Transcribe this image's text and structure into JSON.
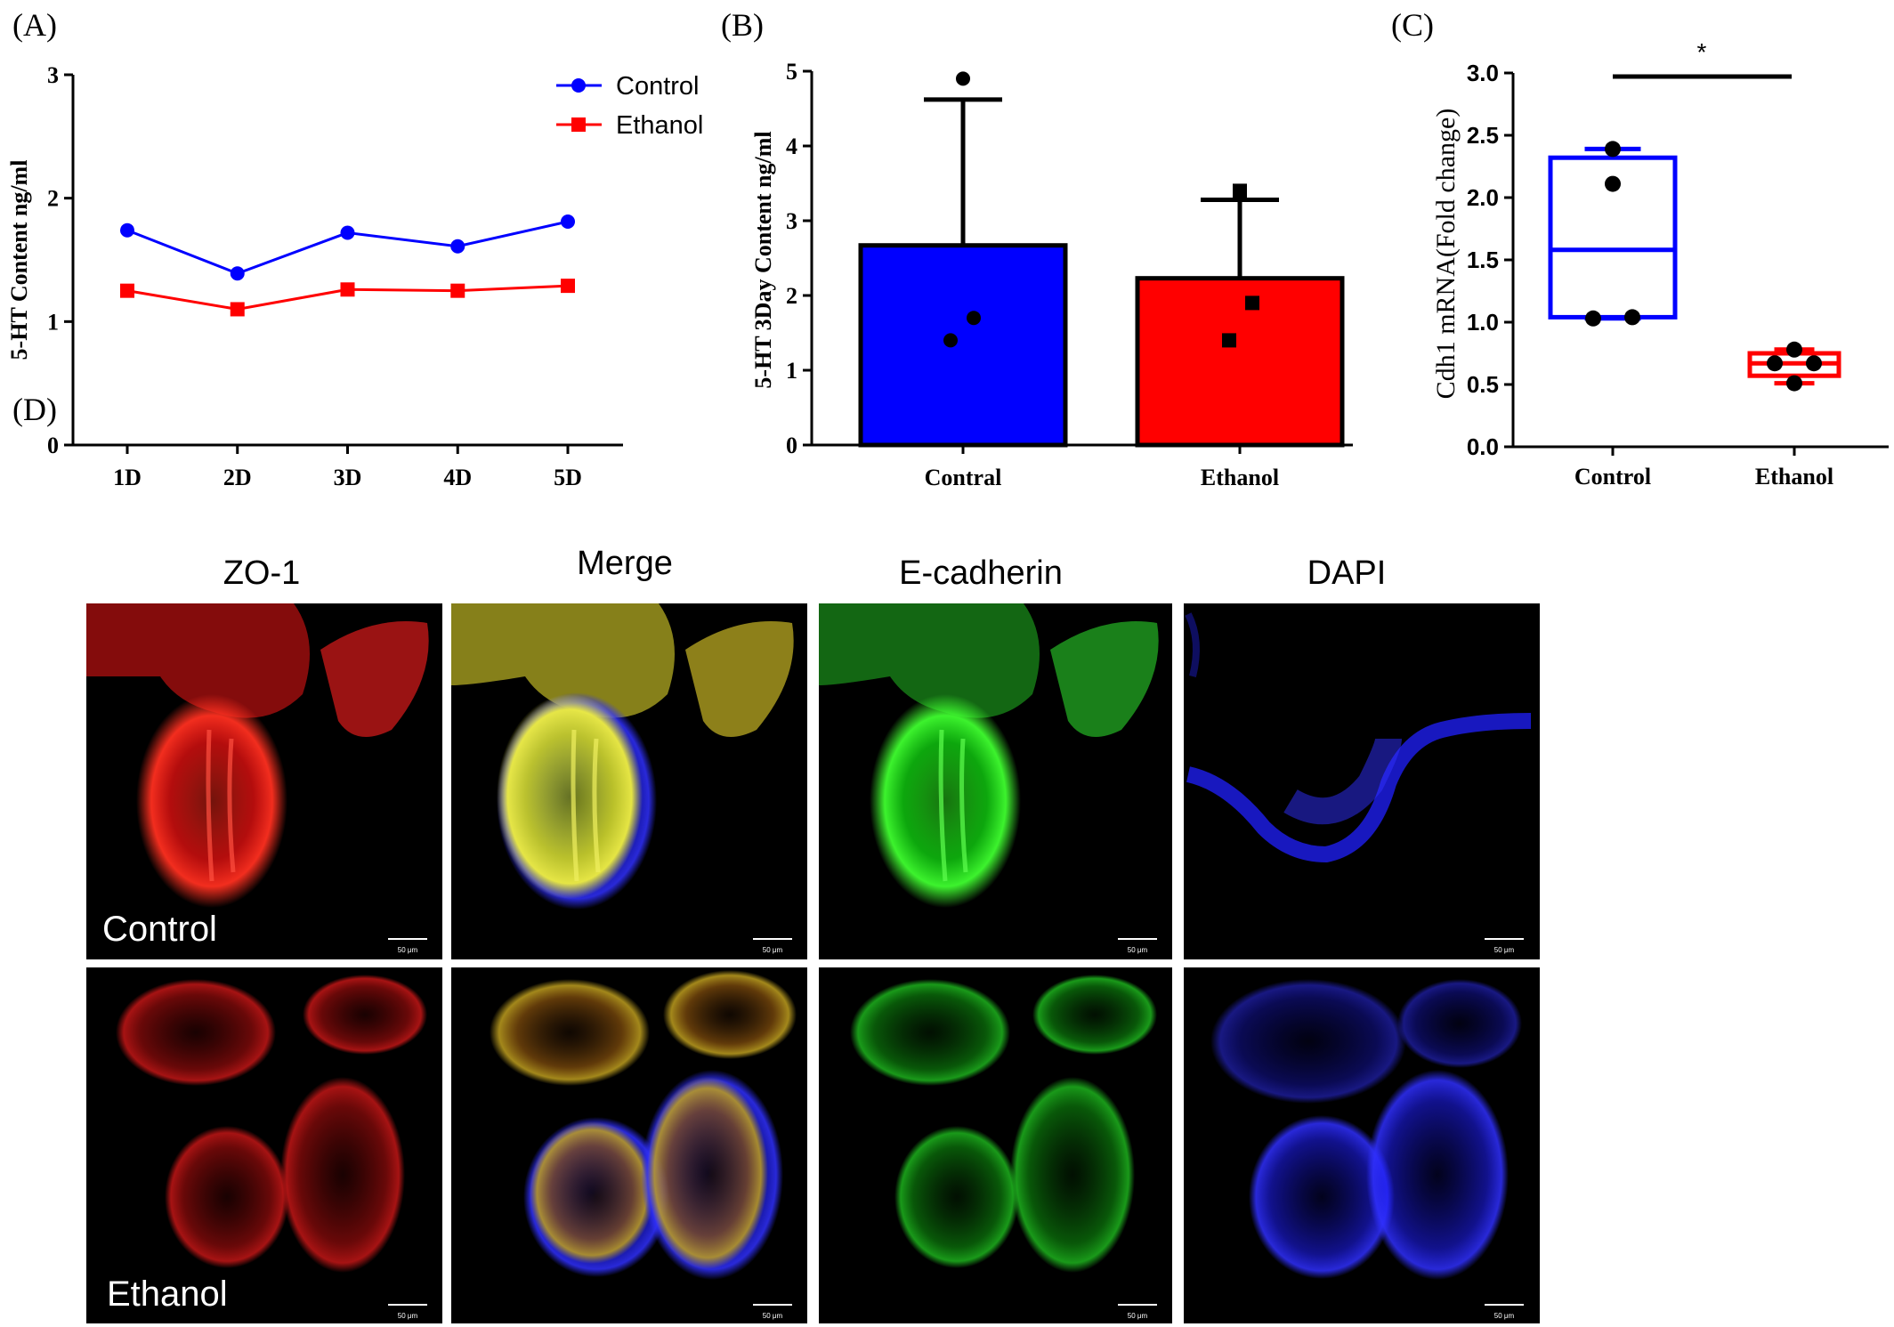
{
  "colors": {
    "control": "#0000ff",
    "ethanol": "#ff0000",
    "axis": "#000000"
  },
  "panel_labels": {
    "a": "(A)",
    "b": "(B)",
    "c": "(C)",
    "d": "(D)"
  },
  "chart_data": [
    {
      "panel": "A",
      "type": "line",
      "ylabel": "5-HT Content ng/ml",
      "xlabel": "",
      "categories": [
        "1D",
        "2D",
        "3D",
        "4D",
        "5D"
      ],
      "ylim": [
        0,
        3
      ],
      "yticks": [
        0,
        1,
        2,
        3
      ],
      "legend_position": "top-right",
      "series": [
        {
          "name": "Control",
          "color": "#0000ff",
          "marker": "circle",
          "values": [
            1.74,
            1.39,
            1.72,
            1.61,
            1.81
          ]
        },
        {
          "name": "Ethanol",
          "color": "#ff0000",
          "marker": "square",
          "values": [
            1.25,
            1.1,
            1.26,
            1.25,
            1.29
          ]
        }
      ]
    },
    {
      "panel": "B",
      "type": "bar",
      "ylabel": "5-HT 3Day Content ng/ml",
      "xlabel": "",
      "categories": [
        "Contral",
        "Ethanol"
      ],
      "ylim": [
        0,
        5
      ],
      "yticks": [
        0,
        1,
        2,
        3,
        4,
        5
      ],
      "series": [
        {
          "colors": [
            "#0000ff",
            "#ff0000"
          ],
          "values": [
            2.67,
            2.23
          ],
          "error_upper": [
            4.62,
            3.28
          ],
          "points": [
            [
              4.9,
              1.7,
              1.4
            ],
            [
              3.4,
              1.9,
              1.4
            ]
          ],
          "point_markers": [
            "circle",
            "square"
          ]
        }
      ]
    },
    {
      "panel": "C",
      "type": "box",
      "ylabel": "Cdh1 mRNA(Fold change)",
      "xlabel": "",
      "categories": [
        "Control",
        "Ethanol"
      ],
      "ylim": [
        0,
        3.0
      ],
      "yticks": [
        "0.0",
        "0.5",
        "1.0",
        "1.5",
        "2.0",
        "2.5",
        "3.0"
      ],
      "significance": "*",
      "series": [
        {
          "name": "Control",
          "color": "#0000ff",
          "min": 1.03,
          "q1": 1.04,
          "median": 1.58,
          "q3": 2.32,
          "max": 2.39,
          "points": [
            2.39,
            2.11,
            1.03,
            1.04
          ]
        },
        {
          "name": "Ethanol",
          "color": "#ff0000",
          "min": 0.51,
          "q1": 0.57,
          "median": 0.67,
          "q3": 0.75,
          "max": 0.78,
          "points": [
            0.78,
            0.67,
            0.67,
            0.51
          ]
        }
      ]
    }
  ],
  "microscopy": {
    "columns": [
      "ZO-1",
      "Merge",
      "E-cadherin",
      "DAPI"
    ],
    "rows": [
      "Control",
      "Ethanol"
    ],
    "scale_bar_label": "50 μm"
  }
}
